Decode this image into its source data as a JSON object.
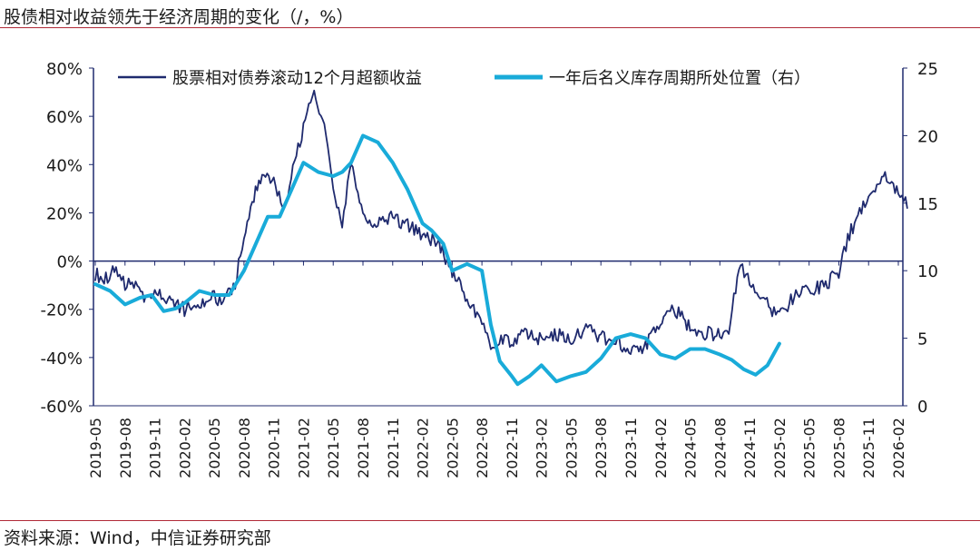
{
  "chart_data": {
    "type": "line",
    "title": "股债相对收益领先于经济周期的变化（/，%）",
    "source": "资料来源：Wind，中信证券研究部",
    "x_ticks": [
      "2019-05",
      "2019-08",
      "2019-11",
      "2020-02",
      "2020-05",
      "2020-08",
      "2020-11",
      "2021-02",
      "2021-05",
      "2021-08",
      "2021-11",
      "2022-02",
      "2022-05",
      "2022-08",
      "2022-11",
      "2023-02",
      "2023-05",
      "2023-08",
      "2023-11",
      "2024-02",
      "2024-05",
      "2024-08",
      "2024-11",
      "2025-02",
      "2025-05",
      "2025-08",
      "2025-11",
      "2026-02"
    ],
    "y_left": {
      "min": -60,
      "max": 80,
      "ticks": [
        "-60%",
        "-40%",
        "-20%",
        "0%",
        "20%",
        "40%",
        "60%",
        "80%"
      ],
      "tick_values": [
        -60,
        -40,
        -20,
        0,
        20,
        40,
        60,
        80
      ]
    },
    "y_right": {
      "min": 0,
      "max": 25,
      "ticks": [
        "0",
        "5",
        "10",
        "15",
        "20",
        "25"
      ],
      "tick_values": [
        0,
        5,
        10,
        15,
        20,
        25
      ]
    },
    "series": [
      {
        "name": "股票相对债券滚动12个月超额收益",
        "axis": "left",
        "color": "#1f2a6e",
        "x": [
          0,
          0.3,
          0.7,
          1,
          1.3,
          1.7,
          2,
          2.5,
          3,
          3.5,
          4,
          4.3,
          4.7,
          5,
          5.5,
          6,
          6.3,
          6.7,
          7,
          7.3,
          7.7,
          8,
          8.3,
          8.6,
          9,
          9.5,
          10,
          10.5,
          11,
          11.5,
          12,
          12.5,
          13,
          13.3,
          13.7,
          14,
          14.5,
          15,
          15.5,
          16,
          16.5,
          17,
          17.5,
          18,
          18.5,
          19,
          19.5,
          20,
          20.5,
          21,
          21.3,
          21.7,
          22,
          22.3,
          22.7,
          23,
          23.5,
          24,
          24.5,
          25,
          25.3,
          25.7,
          26,
          26.5,
          27,
          27.3
        ],
        "values": [
          -5,
          -8,
          -3,
          -10,
          -9,
          -15,
          -13,
          -17,
          -20,
          -18,
          -15,
          -17,
          -10,
          10,
          34,
          35,
          20,
          40,
          55,
          70,
          55,
          30,
          15,
          40,
          20,
          15,
          18,
          15,
          10,
          8,
          -5,
          -15,
          -25,
          -35,
          -32,
          -33,
          -30,
          -33,
          -30,
          -32,
          -28,
          -32,
          -32,
          -38,
          -35,
          -25,
          -20,
          -28,
          -30,
          -30,
          -28,
          0,
          -10,
          -12,
          -20,
          -22,
          -15,
          -12,
          -10,
          -5,
          10,
          20,
          25,
          35,
          30,
          22
        ]
      },
      {
        "name": "一年后名义库存周期所处位置（右）",
        "axis": "right",
        "color": "#19abd9",
        "x": [
          0,
          0.5,
          1,
          1.5,
          1.9,
          2.3,
          2.7,
          3,
          3.5,
          4,
          4.5,
          5,
          5.4,
          5.8,
          6.2,
          6.6,
          7,
          7.5,
          8,
          8.3,
          8.6,
          9,
          9.5,
          10,
          10.5,
          11,
          11.3,
          11.7,
          12,
          12.5,
          13,
          13.3,
          13.6,
          14,
          14.2,
          14.6,
          15,
          15.5,
          16,
          16.5,
          17,
          17.5,
          18,
          18.5,
          19,
          19.5,
          20,
          20.5,
          21,
          21.4,
          21.8,
          22.2,
          22.6,
          23
        ],
        "values": [
          9,
          8.5,
          7.5,
          8,
          8.2,
          7,
          7.2,
          7.6,
          8.5,
          8.2,
          8.2,
          10,
          12,
          14,
          14,
          16,
          18,
          17.3,
          17,
          17.3,
          18,
          20,
          19.5,
          18,
          16,
          13.5,
          13,
          12,
          10,
          10.5,
          10,
          6,
          3.3,
          2.2,
          1.6,
          2.2,
          3,
          1.8,
          2.2,
          2.5,
          3.5,
          5,
          5.3,
          5,
          3.8,
          3.5,
          4.2,
          4.2,
          3.8,
          3.4,
          2.7,
          2.3,
          3,
          4.6
        ]
      }
    ]
  }
}
